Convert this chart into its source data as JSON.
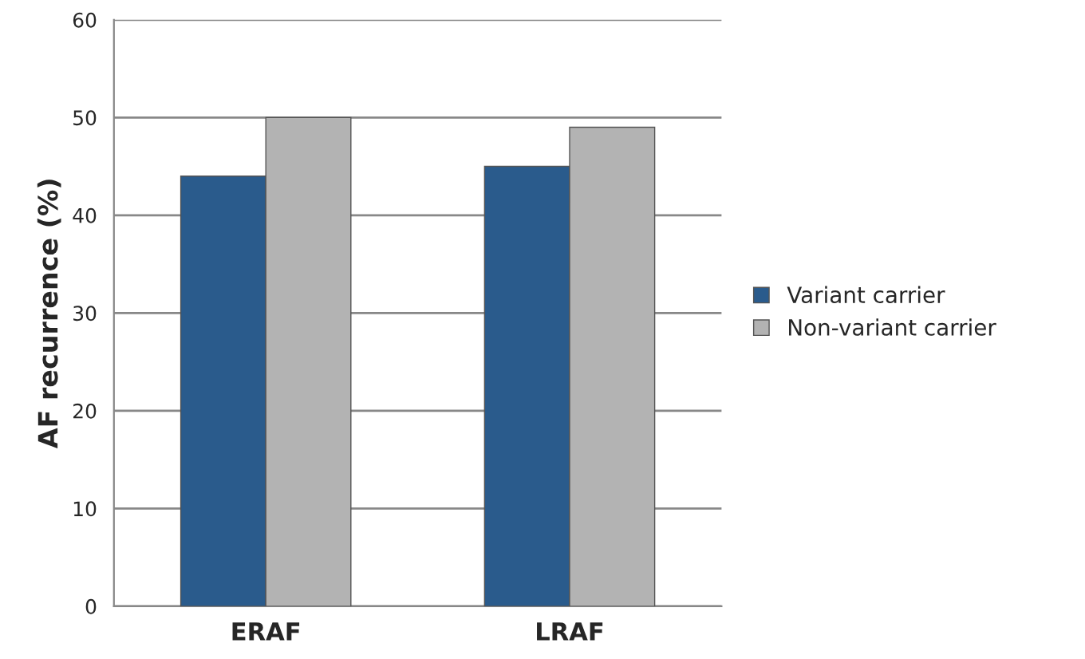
{
  "chart_data": {
    "type": "bar",
    "ylabel": "AF recurrence (%)",
    "categories": [
      "ERAF",
      "LRAF"
    ],
    "series": [
      {
        "name": "Variant carrier",
        "color": "#2a5b8c",
        "values": [
          44,
          45
        ]
      },
      {
        "name": "Non-variant carrier",
        "color": "#b3b3b3",
        "values": [
          50,
          49
        ]
      }
    ],
    "ylim": [
      0,
      60
    ],
    "yticks": [
      0,
      10,
      20,
      30,
      40,
      50,
      60
    ],
    "grid": "y",
    "legend": "right"
  }
}
